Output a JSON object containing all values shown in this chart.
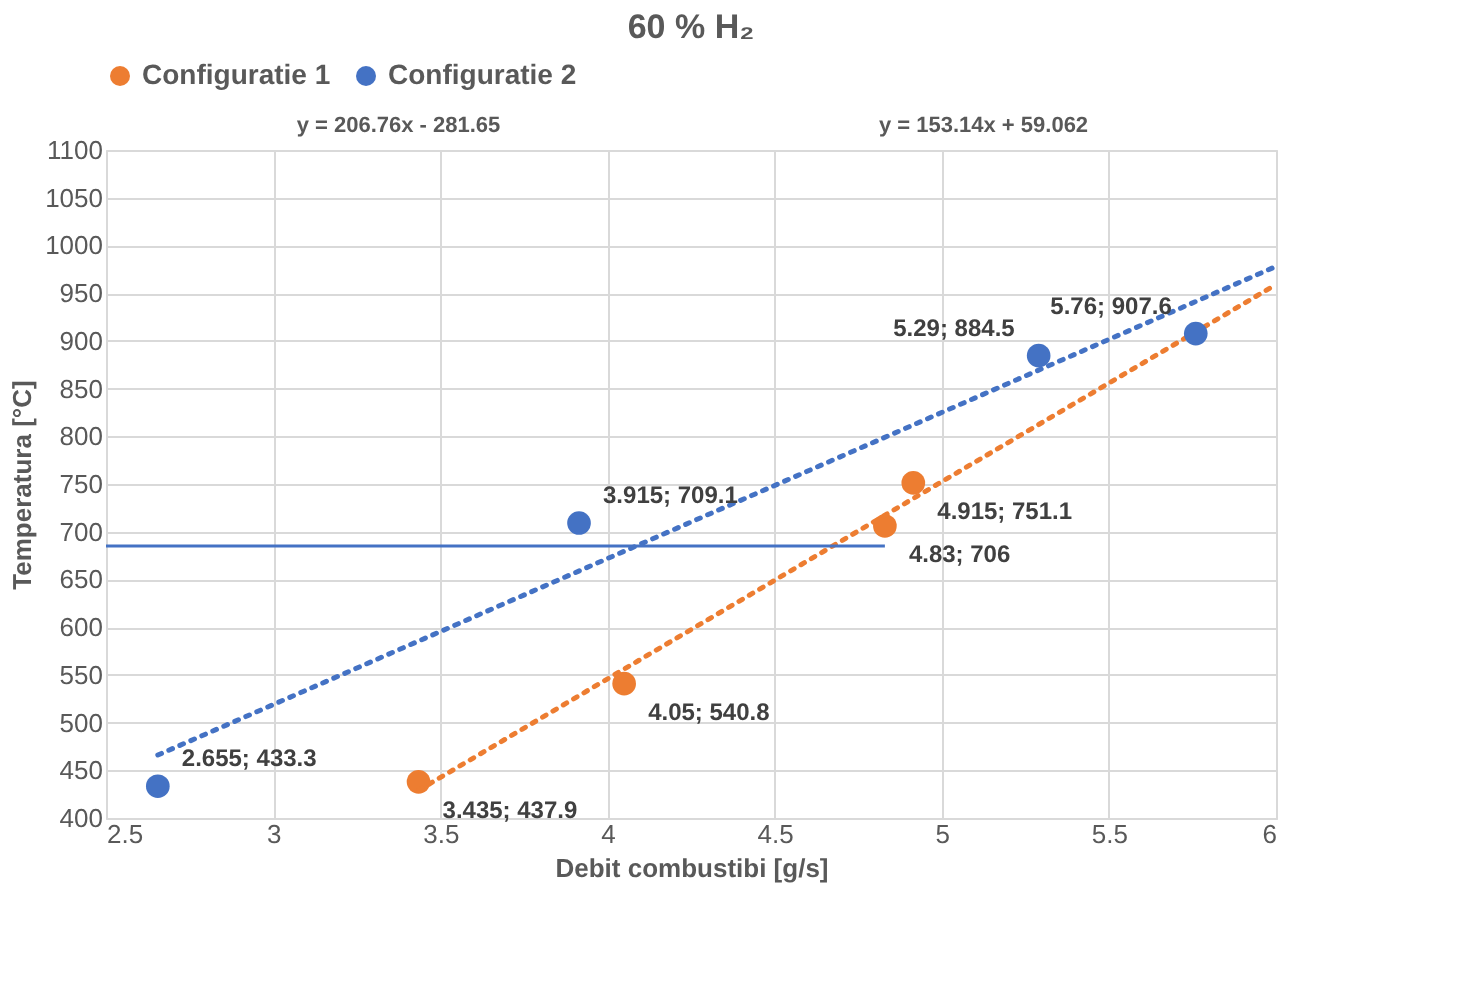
{
  "chart_data": {
    "type": "scatter",
    "title": "60 % H₂",
    "xlabel": "Debit combustibi [g/s]",
    "ylabel": "Temperatura [°C]",
    "series": [
      {
        "name": "Configuratie 1",
        "color": "#ed7d31",
        "marker": "circle",
        "x": [
          3.435,
          4.05,
          4.83,
          4.915
        ],
        "values": [
          437.9,
          540.8,
          706,
          751.1
        ],
        "value_labels": [
          "3.435; 437.9",
          "4.05; 540.8",
          "4.83; 706",
          "4.915; 751.1"
        ]
      },
      {
        "name": "Configuratie 2",
        "color": "#4472c4",
        "marker": "circle",
        "x": [
          2.655,
          3.915,
          5.29,
          5.76
        ],
        "values": [
          433.3,
          709.1,
          884.5,
          907.6
        ],
        "value_labels": [
          "2.655; 433.3",
          "3.915; 709.1",
          "5.29; 884.5",
          "5.76; 907.6"
        ]
      },
      {
        "color": "#ed7d31",
        "type": "line",
        "line_style": "dotted",
        "x": [
          3.435,
          6
        ],
        "values": [
          429,
          959
        ]
      },
      {
        "color": "#4472c4",
        "type": "line",
        "line_style": "dotted",
        "x": [
          2.655,
          6
        ],
        "values": [
          466,
          978
        ]
      },
      {
        "color": "#4472c4",
        "type": "line",
        "line_style": "solid",
        "x": [
          2.5,
          4.83
        ],
        "values": [
          685,
          685
        ]
      }
    ],
    "annotations": [
      "y = 206.76x - 281.65",
      "y = 153.14x + 59.062"
    ],
    "xlim": [
      2.5,
      6
    ],
    "xticks": [
      2.5,
      3,
      3.5,
      4,
      4.5,
      5,
      5.5,
      6
    ],
    "ylim": [
      400,
      1100
    ],
    "yticks": [
      400,
      450,
      500,
      550,
      600,
      650,
      700,
      750,
      800,
      850,
      900,
      950,
      1000,
      1050,
      1100
    ],
    "grid": true,
    "legend": "top"
  }
}
